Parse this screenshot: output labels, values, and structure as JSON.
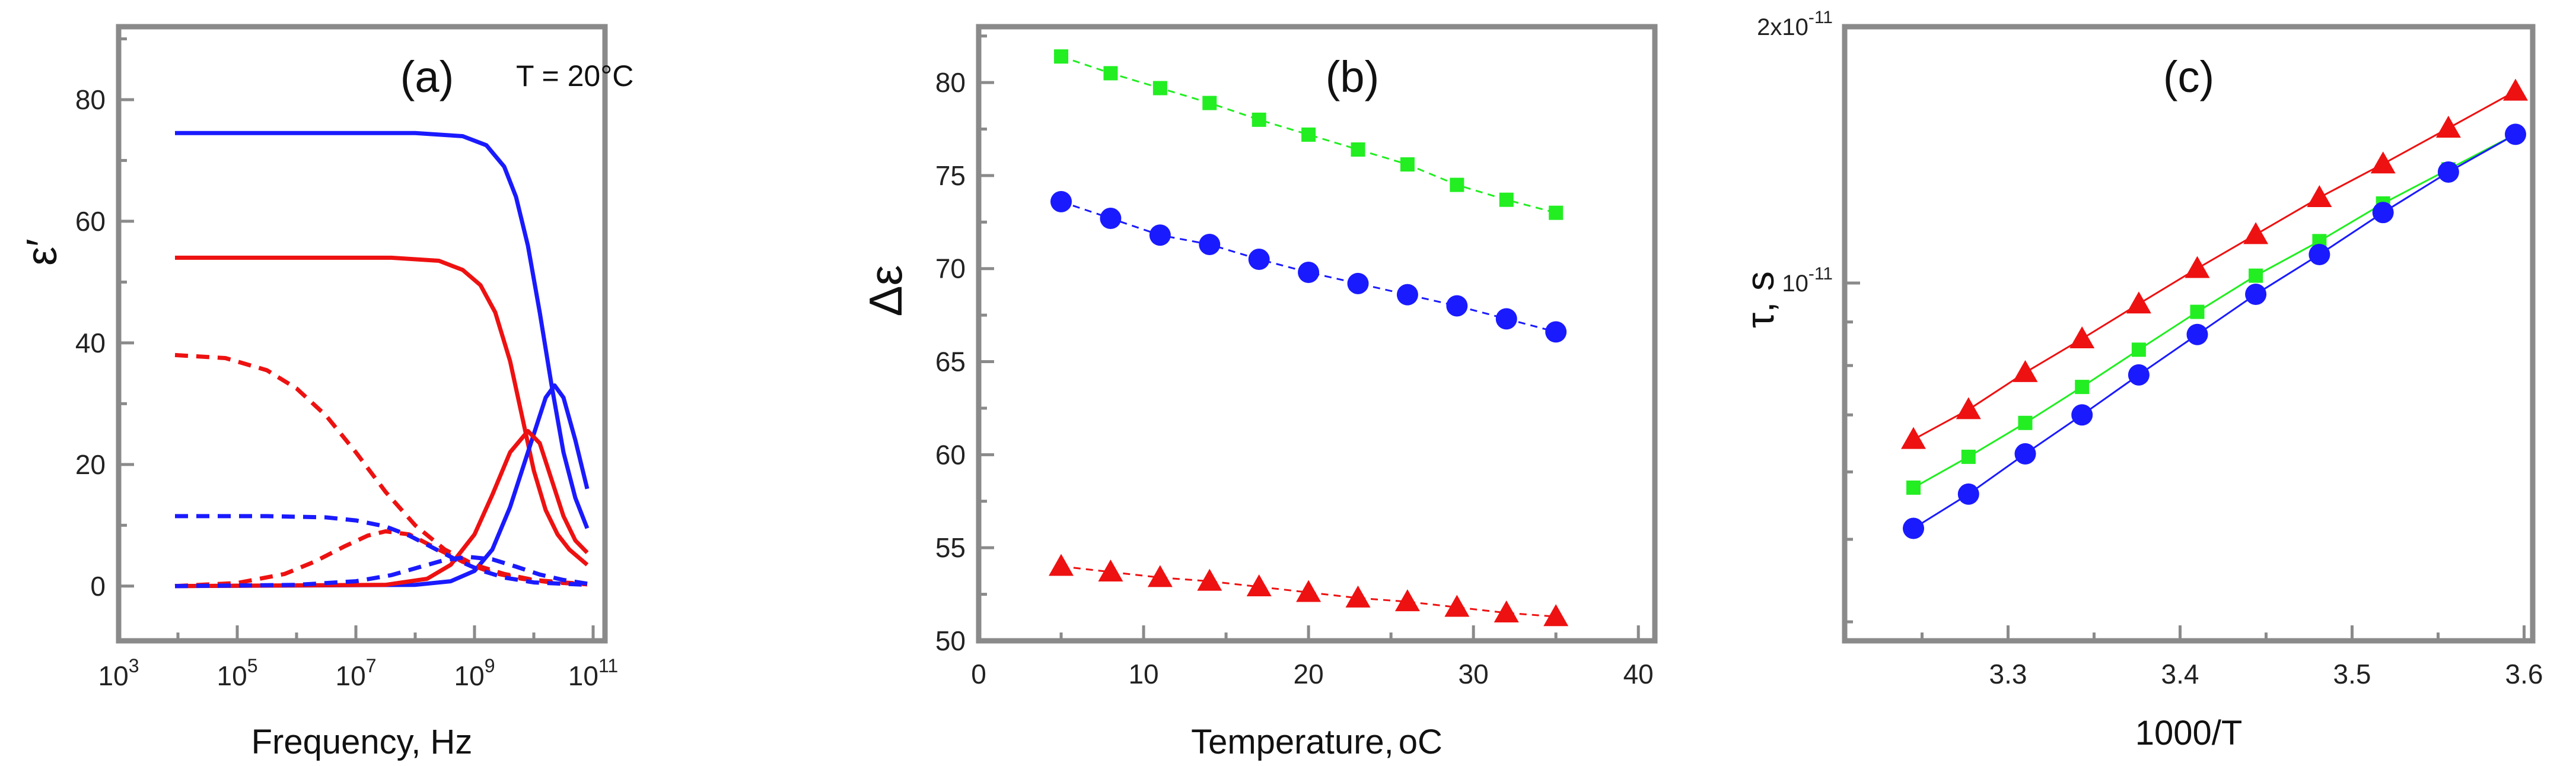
{
  "chart_data": [
    {
      "type": "line",
      "panel": "(a)",
      "annotation": "T = 20°C",
      "xlabel": "Frequency, Hz",
      "ylabel": "ε′",
      "xscale": "log",
      "xlim_exp": [
        3,
        11.2
      ],
      "ylim": [
        -9,
        92
      ],
      "xticks": [
        {
          "base": "10",
          "exp": "3",
          "v": 3
        },
        {
          "base": "10",
          "exp": "5",
          "v": 5
        },
        {
          "base": "10",
          "exp": "7",
          "v": 7
        },
        {
          "base": "10",
          "exp": "9",
          "v": 9
        },
        {
          "base": "10",
          "exp": "11",
          "v": 11
        }
      ],
      "yticks": [
        "0",
        "20",
        "40",
        "60",
        "80"
      ],
      "series": [
        {
          "name": "blue-solid-real",
          "color": "#1a1aff",
          "dash": false,
          "x": [
            3.95,
            8.0,
            8.8,
            9.2,
            9.5,
            9.7,
            9.9,
            10.1,
            10.3,
            10.5,
            10.7,
            10.9
          ],
          "y": [
            74.5,
            74.5,
            74.0,
            72.5,
            69.0,
            64.0,
            56.0,
            45.0,
            33.0,
            22.0,
            14.5,
            9.5
          ]
        },
        {
          "name": "red-solid-real",
          "color": "#ee1111",
          "dash": false,
          "x": [
            3.95,
            7.6,
            8.4,
            8.8,
            9.1,
            9.35,
            9.6,
            9.8,
            10.0,
            10.2,
            10.4,
            10.6,
            10.9
          ],
          "y": [
            54.0,
            54.0,
            53.5,
            52.0,
            49.5,
            45.0,
            37.0,
            28.0,
            19.0,
            12.5,
            8.5,
            6.0,
            3.5
          ]
        },
        {
          "name": "blue-solid-loss",
          "color": "#1a1aff",
          "dash": false,
          "x": [
            3.95,
            8.0,
            8.6,
            9.0,
            9.3,
            9.6,
            9.9,
            10.2,
            10.35,
            10.5,
            10.7,
            10.9
          ],
          "y": [
            0.0,
            0.2,
            0.8,
            2.5,
            6.0,
            13.0,
            22.0,
            31.0,
            33.0,
            31.0,
            24.0,
            16.0
          ]
        },
        {
          "name": "red-solid-loss",
          "color": "#ee1111",
          "dash": false,
          "x": [
            3.95,
            7.5,
            8.2,
            8.6,
            9.0,
            9.3,
            9.6,
            9.9,
            10.1,
            10.3,
            10.5,
            10.7,
            10.9
          ],
          "y": [
            0.0,
            0.2,
            1.2,
            3.5,
            8.5,
            15.0,
            22.0,
            25.5,
            23.5,
            17.5,
            11.5,
            7.5,
            5.5
          ]
        },
        {
          "name": "red-dash-real",
          "color": "#ee1111",
          "dash": true,
          "x": [
            3.95,
            4.8,
            5.5,
            6.0,
            6.5,
            7.0,
            7.5,
            8.0,
            8.5,
            9.0,
            9.5,
            10.0,
            10.9
          ],
          "y": [
            38.0,
            37.5,
            35.5,
            32.5,
            28.0,
            22.0,
            15.5,
            10.0,
            6.0,
            3.5,
            2.0,
            1.0,
            0.3
          ]
        },
        {
          "name": "red-dash-loss",
          "color": "#ee1111",
          "dash": true,
          "x": [
            3.95,
            5.0,
            5.8,
            6.3,
            6.8,
            7.2,
            7.5,
            7.9,
            8.3,
            8.8,
            9.3,
            9.8,
            10.3,
            10.9
          ],
          "y": [
            0.0,
            0.5,
            2.0,
            4.0,
            6.5,
            8.3,
            9.0,
            8.5,
            6.5,
            4.0,
            2.2,
            1.2,
            0.6,
            0.3
          ]
        },
        {
          "name": "blue-dash-real",
          "color": "#1a1aff",
          "dash": true,
          "x": [
            3.95,
            5.5,
            6.5,
            7.0,
            7.5,
            7.9,
            8.3,
            8.7,
            9.1,
            9.5,
            10.0,
            10.9
          ],
          "y": [
            11.5,
            11.5,
            11.3,
            10.8,
            9.8,
            8.3,
            6.3,
            4.3,
            2.6,
            1.4,
            0.6,
            0.2
          ]
        },
        {
          "name": "blue-dash-loss",
          "color": "#1a1aff",
          "dash": true,
          "x": [
            3.95,
            6.0,
            7.0,
            7.6,
            8.1,
            8.5,
            8.9,
            9.3,
            9.7,
            10.1,
            10.5,
            10.9
          ],
          "y": [
            0.0,
            0.2,
            0.8,
            1.8,
            3.2,
            4.3,
            4.8,
            4.4,
            3.2,
            1.9,
            1.0,
            0.4
          ]
        }
      ]
    },
    {
      "type": "scatter",
      "panel": "(b)",
      "xlabel": "Temperature,",
      "xlabel_unit": "oC",
      "ylabel": "Δε",
      "xlim": [
        0,
        41
      ],
      "ylim": [
        50,
        83
      ],
      "xticks": [
        "0",
        "10",
        "20",
        "30",
        "40"
      ],
      "yticks": [
        "50",
        "55",
        "60",
        "65",
        "70",
        "75",
        "80"
      ],
      "x": [
        5,
        8,
        11,
        14,
        17,
        20,
        23,
        26,
        29,
        32,
        35
      ],
      "series": [
        {
          "name": "green-squares",
          "color": "#22ee22",
          "marker": "square",
          "values": [
            81.4,
            80.5,
            79.7,
            78.9,
            78.0,
            77.2,
            76.4,
            75.6,
            74.5,
            73.7,
            73.0
          ]
        },
        {
          "name": "blue-circles",
          "color": "#1a1aff",
          "marker": "circle",
          "values": [
            73.6,
            72.7,
            71.8,
            71.3,
            70.5,
            69.8,
            69.2,
            68.6,
            68.0,
            67.3,
            66.6
          ]
        },
        {
          "name": "red-triangles",
          "color": "#ee1111",
          "marker": "triangle",
          "values": [
            54.0,
            53.7,
            53.4,
            53.2,
            52.9,
            52.6,
            52.3,
            52.1,
            51.8,
            51.5,
            51.3
          ]
        }
      ]
    },
    {
      "type": "scatter",
      "panel": "(c)",
      "xlabel": "1000/T",
      "ylabel": "τ, s",
      "xlim": [
        3.205,
        3.605
      ],
      "yscale": "log",
      "ylim": [
        3.8e-12,
        2e-11
      ],
      "xticks": [
        "3.3",
        "3.4",
        "3.5",
        "3.6"
      ],
      "ytick_top": {
        "mant": "2x10",
        "exp": "-11"
      },
      "ytick_mid": {
        "base": "10",
        "exp": "-11"
      },
      "x": [
        3.245,
        3.277,
        3.31,
        3.343,
        3.376,
        3.41,
        3.444,
        3.481,
        3.518,
        3.556,
        3.595
      ],
      "series": [
        {
          "name": "red-triangles",
          "color": "#ee1111",
          "marker": "triangle",
          "values": [
            6.55e-12,
            7.1e-12,
            7.85e-12,
            8.6e-12,
            9.45e-12,
            1.04e-11,
            1.14e-11,
            1.26e-11,
            1.38e-11,
            1.52e-11,
            1.68e-11
          ]
        },
        {
          "name": "green-squares",
          "color": "#22ee22",
          "marker": "square",
          "values": [
            5.75e-12,
            6.25e-12,
            6.85e-12,
            7.55e-12,
            8.35e-12,
            9.25e-12,
            1.02e-11,
            1.12e-11,
            1.24e-11,
            1.36e-11,
            1.495e-11
          ]
        },
        {
          "name": "blue-circles",
          "color": "#1a1aff",
          "marker": "circle",
          "values": [
            5.15e-12,
            5.65e-12,
            6.3e-12,
            7e-12,
            7.8e-12,
            8.7e-12,
            9.7e-12,
            1.08e-11,
            1.21e-11,
            1.35e-11,
            1.495e-11
          ]
        }
      ]
    }
  ]
}
